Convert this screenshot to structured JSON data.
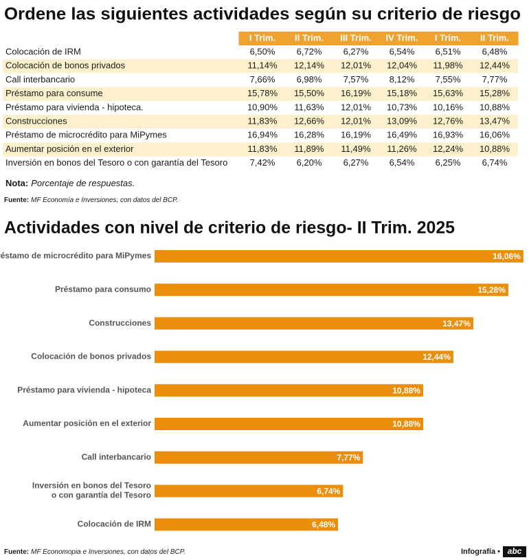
{
  "table": {
    "title": "Ordene las siguientes actividades según su criterio de riesgo",
    "columns": [
      "I Trim.",
      "II Trim.",
      "III Trim.",
      "IV Trim.",
      "I Trim.",
      "II Trim."
    ],
    "rows": [
      {
        "label": "Colocación de IRM",
        "cells": [
          "6,50%",
          "6,72%",
          "6,27%",
          "6,54%",
          "6,51%",
          "6,48%"
        ]
      },
      {
        "label": "Colocación de bonos privados",
        "cells": [
          "11,14%",
          "12,14%",
          "12,01%",
          "12,04%",
          "11,98%",
          "12,44%"
        ]
      },
      {
        "label": "Call interbancario",
        "cells": [
          "7,66%",
          "6,98%",
          "7,57%",
          "8,12%",
          "7,55%",
          "7,77%"
        ]
      },
      {
        "label": "Préstamo para consume",
        "cells": [
          "15,78%",
          "15,50%",
          "16,19%",
          "15,18%",
          "15,63%",
          "15,28%"
        ]
      },
      {
        "label": "Préstamo para vivienda - hipoteca.",
        "cells": [
          "10,90%",
          "11,63%",
          "12,01%",
          "10,73%",
          "10,16%",
          "10,88%"
        ]
      },
      {
        "label": "Construcciones",
        "cells": [
          "11,83%",
          "12,66%",
          "12,01%",
          "13,09%",
          "12,76%",
          "13,47%"
        ]
      },
      {
        "label": "Préstamo de microcrédito para MiPymes",
        "cells": [
          "16,94%",
          "16,28%",
          "16,19%",
          "16,49%",
          "16,93%",
          "16,06%"
        ]
      },
      {
        "label": "Aumentar posición en el exterior",
        "cells": [
          "11,83%",
          "11,89%",
          "11,49%",
          "11,26%",
          "12,24%",
          "10,88%"
        ]
      },
      {
        "label": "Inversión en bonos del Tesoro o con garantía del Tesoro",
        "cells": [
          "7,42%",
          "6,20%",
          "6,27%",
          "6,54%",
          "6,25%",
          "6,74%"
        ]
      }
    ],
    "note_label": "Nota:",
    "note": "Porcentaje de respuestas.",
    "source_label": "Fuente:",
    "source": "MF Economía e Inversiones, con datos del BCP."
  },
  "chart_data": {
    "type": "bar",
    "orientation": "horizontal",
    "title": "Actividades con nivel de criterio de riesgo- II Trim. 2025",
    "categories": [
      "Préstamo de microcrédito para MiPymes",
      "Préstamo para consumo",
      "Construcciones",
      "Colocación de bonos privados",
      "Préstamo para vivienda - hipoteca",
      "Aumentar posición en el exterior",
      "Call interbancario",
      "Inversión en bonos del Tesoro\no con garantía del Tesoro",
      "Colocación de IRM"
    ],
    "values": [
      16.06,
      15.28,
      13.47,
      12.44,
      10.88,
      10.88,
      7.77,
      6.74,
      6.48
    ],
    "value_labels": [
      "16,06%",
      "15,28%",
      "13,47%",
      "12,44%",
      "10,88%",
      "10,88%",
      "7,77%",
      "6,74%",
      "6,48%"
    ],
    "color": "#ea8e0c",
    "xlim": [
      -3,
      16.1
    ]
  },
  "footer": {
    "source_label": "Fuente:",
    "source": "MF Economopia e Inversiones, con datos del BCP.",
    "credit": "Infografía •",
    "logo": "abc"
  }
}
